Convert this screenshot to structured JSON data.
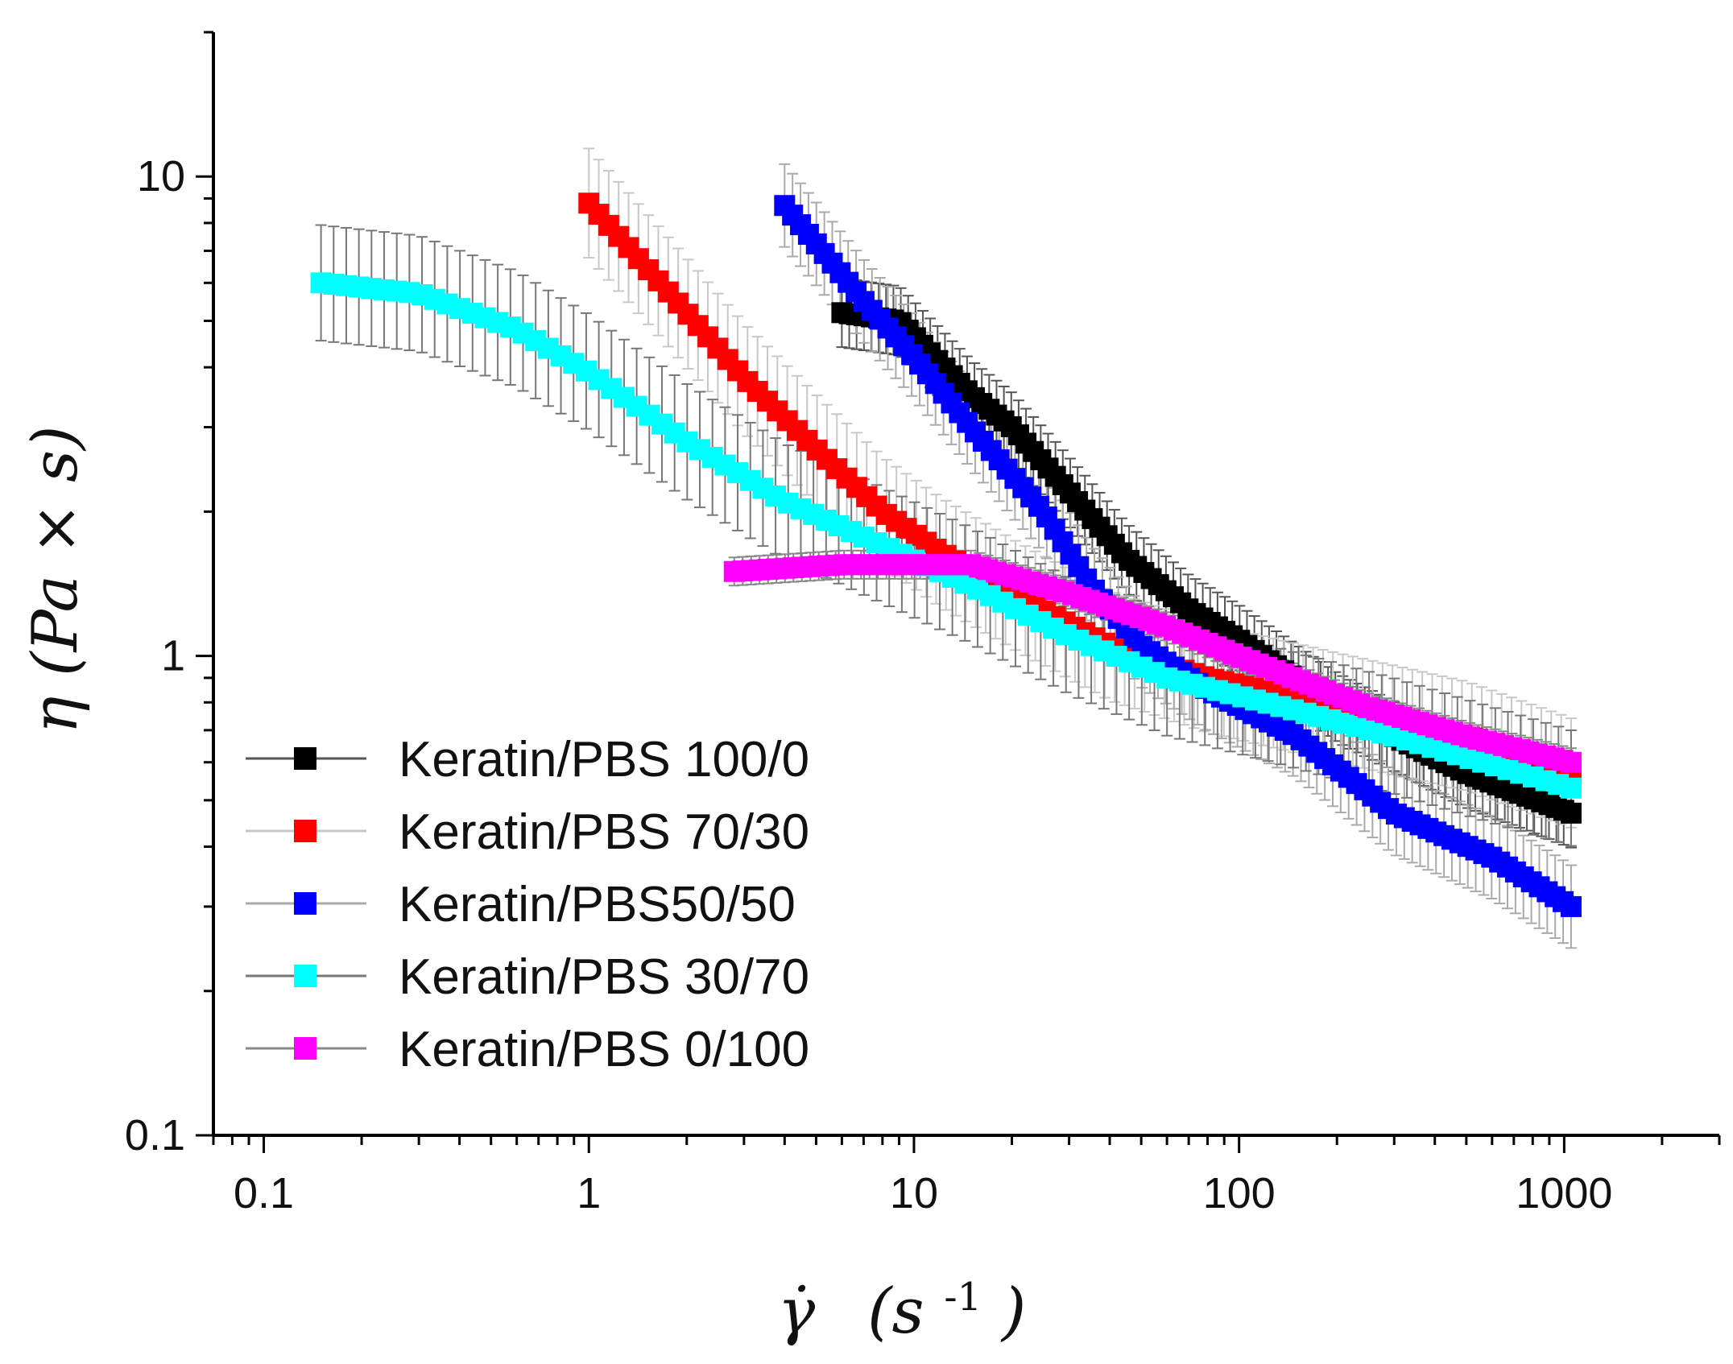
{
  "chart_data": {
    "type": "scatter",
    "title": "",
    "xlabel": "γ̇  (s-1)",
    "xlabel_parts": {
      "symbol": "γ̇",
      "unit_open": "(s",
      "unit_exp": "-1",
      "unit_close": ")"
    },
    "ylabel": "η (Pa × s)",
    "xscale": "log",
    "yscale": "log",
    "xlim": [
      0.07,
      3000
    ],
    "ylim": [
      0.1,
      20
    ],
    "x_ticks": [
      {
        "value": 0.1,
        "label": "0.1"
      },
      {
        "value": 1,
        "label": "1"
      },
      {
        "value": 10,
        "label": "10"
      },
      {
        "value": 100,
        "label": "100"
      },
      {
        "value": 1000,
        "label": "1000"
      }
    ],
    "y_ticks": [
      {
        "value": 0.1,
        "label": "0.1"
      },
      {
        "value": 1,
        "label": "1"
      },
      {
        "value": 10,
        "label": "10"
      }
    ],
    "legend_position": "bottom-left",
    "series": [
      {
        "name": "Keratin/PBS 100/0",
        "color": "#000000",
        "x_range": [
          6,
          1050
        ],
        "knots": [
          [
            6,
            5.2
          ],
          [
            9,
            5.0
          ],
          [
            15,
            3.5
          ],
          [
            20,
            3.0
          ],
          [
            30,
            2.2
          ],
          [
            45,
            1.6
          ],
          [
            70,
            1.25
          ],
          [
            100,
            1.08
          ],
          [
            200,
            0.78
          ],
          [
            500,
            0.57
          ],
          [
            1050,
            0.47
          ]
        ],
        "err_frac": 0.18,
        "err_color": "#555555"
      },
      {
        "name": "Keratin/PBS 70/30",
        "color": "#ff0000",
        "x_range": [
          1,
          1050
        ],
        "knots": [
          [
            1,
            8.8
          ],
          [
            2,
            5.2
          ],
          [
            3,
            3.8
          ],
          [
            5,
            2.7
          ],
          [
            8,
            2.0
          ],
          [
            12,
            1.65
          ],
          [
            20,
            1.35
          ],
          [
            40,
            1.05
          ],
          [
            80,
            0.9
          ],
          [
            200,
            0.78
          ],
          [
            500,
            0.68
          ],
          [
            1050,
            0.57
          ]
        ],
        "err_frac": 0.3,
        "err_color": "#c8c8c8"
      },
      {
        "name": "Keratin/PBS50/50",
        "color": "#0000ff",
        "x_range": [
          4,
          1050
        ],
        "knots": [
          [
            4,
            8.7
          ],
          [
            7,
            5.5
          ],
          [
            10,
            4.2
          ],
          [
            15,
            3.0
          ],
          [
            25,
            2.0
          ],
          [
            35,
            1.4
          ],
          [
            50,
            1.05
          ],
          [
            80,
            0.85
          ],
          [
            150,
            0.68
          ],
          [
            300,
            0.47
          ],
          [
            600,
            0.38
          ],
          [
            1050,
            0.3
          ]
        ],
        "err_frac": 0.22,
        "err_color": "#aaaaaa"
      },
      {
        "name": "Keratin/PBS 30/70",
        "color": "#00ffff",
        "x_range": [
          0.15,
          1050
        ],
        "knots": [
          [
            0.15,
            6.0
          ],
          [
            0.3,
            5.7
          ],
          [
            0.6,
            4.8
          ],
          [
            1,
            3.9
          ],
          [
            2,
            2.8
          ],
          [
            4,
            2.1
          ],
          [
            8,
            1.7
          ],
          [
            15,
            1.4
          ],
          [
            30,
            1.1
          ],
          [
            60,
            0.9
          ],
          [
            120,
            0.8
          ],
          [
            300,
            0.68
          ],
          [
            1050,
            0.53
          ]
        ],
        "err_frac": 0.32,
        "err_color": "#777777"
      },
      {
        "name": "Keratin/PBS 0/100",
        "color": "#ff00ff",
        "x_range": [
          2.8,
          1050
        ],
        "knots": [
          [
            2.8,
            1.5
          ],
          [
            6,
            1.55
          ],
          [
            15,
            1.55
          ],
          [
            30,
            1.35
          ],
          [
            60,
            1.15
          ],
          [
            120,
            0.95
          ],
          [
            250,
            0.78
          ],
          [
            500,
            0.68
          ],
          [
            1050,
            0.6
          ]
        ],
        "err_frac": 0.07,
        "err_color": "#888888"
      }
    ]
  }
}
